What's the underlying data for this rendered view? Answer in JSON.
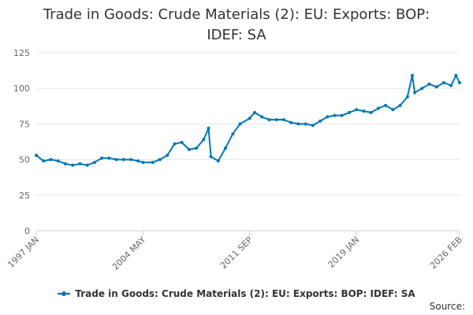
{
  "chart_data": {
    "type": "line",
    "title_lines": [
      "Trade in Goods: Crude Materials (2): EU: Exports: BOP:",
      "IDEF: SA"
    ],
    "x_tick_labels": [
      "1997 JAN",
      "2004 MAY",
      "2011 SEP",
      "2019 JAN",
      "2026 FEB"
    ],
    "y_ticks": [
      0,
      25,
      50,
      75,
      100,
      125
    ],
    "ylim": [
      0,
      125
    ],
    "grid": true,
    "legend_position": "bottom",
    "color": "#0077b6",
    "series": [
      {
        "name": "Trade in Goods: Crude Materials (2): EU: Exports: BOP: IDEF: SA",
        "points": [
          [
            "1997-01",
            53
          ],
          [
            "1997-07",
            49
          ],
          [
            "1998-01",
            50
          ],
          [
            "1998-07",
            49
          ],
          [
            "1999-01",
            47
          ],
          [
            "1999-07",
            46
          ],
          [
            "2000-01",
            47
          ],
          [
            "2000-07",
            46
          ],
          [
            "2001-01",
            48
          ],
          [
            "2001-07",
            51
          ],
          [
            "2002-01",
            51
          ],
          [
            "2002-07",
            50
          ],
          [
            "2003-01",
            50
          ],
          [
            "2003-07",
            50
          ],
          [
            "2004-01",
            49
          ],
          [
            "2004-05",
            48
          ],
          [
            "2005-01",
            48
          ],
          [
            "2005-07",
            50
          ],
          [
            "2006-01",
            53
          ],
          [
            "2006-07",
            61
          ],
          [
            "2007-01",
            62
          ],
          [
            "2007-07",
            57
          ],
          [
            "2008-01",
            58
          ],
          [
            "2008-07",
            64
          ],
          [
            "2008-11",
            72
          ],
          [
            "2009-01",
            52
          ],
          [
            "2009-07",
            49
          ],
          [
            "2010-01",
            58
          ],
          [
            "2010-07",
            68
          ],
          [
            "2011-01",
            75
          ],
          [
            "2011-09",
            79
          ],
          [
            "2012-01",
            83
          ],
          [
            "2012-07",
            80
          ],
          [
            "2013-01",
            78
          ],
          [
            "2013-07",
            78
          ],
          [
            "2014-01",
            78
          ],
          [
            "2014-07",
            76
          ],
          [
            "2015-01",
            75
          ],
          [
            "2015-07",
            75
          ],
          [
            "2016-01",
            74
          ],
          [
            "2016-07",
            77
          ],
          [
            "2017-01",
            80
          ],
          [
            "2017-07",
            81
          ],
          [
            "2018-01",
            81
          ],
          [
            "2018-07",
            83
          ],
          [
            "2019-01",
            85
          ],
          [
            "2019-07",
            84
          ],
          [
            "2020-01",
            83
          ],
          [
            "2020-07",
            86
          ],
          [
            "2021-01",
            88
          ],
          [
            "2021-07",
            85
          ],
          [
            "2022-01",
            88
          ],
          [
            "2022-07",
            94
          ],
          [
            "2022-11",
            109
          ],
          [
            "2023-01",
            97
          ],
          [
            "2023-07",
            100
          ],
          [
            "2024-01",
            103
          ],
          [
            "2024-07",
            101
          ],
          [
            "2025-01",
            104
          ],
          [
            "2025-07",
            102
          ],
          [
            "2025-11",
            109
          ],
          [
            "2026-02",
            104
          ]
        ]
      }
    ]
  },
  "legend": {
    "label": "Trade in Goods: Crude Materials (2): EU: Exports: BOP: IDEF: SA"
  },
  "source": {
    "label": "Source:"
  }
}
